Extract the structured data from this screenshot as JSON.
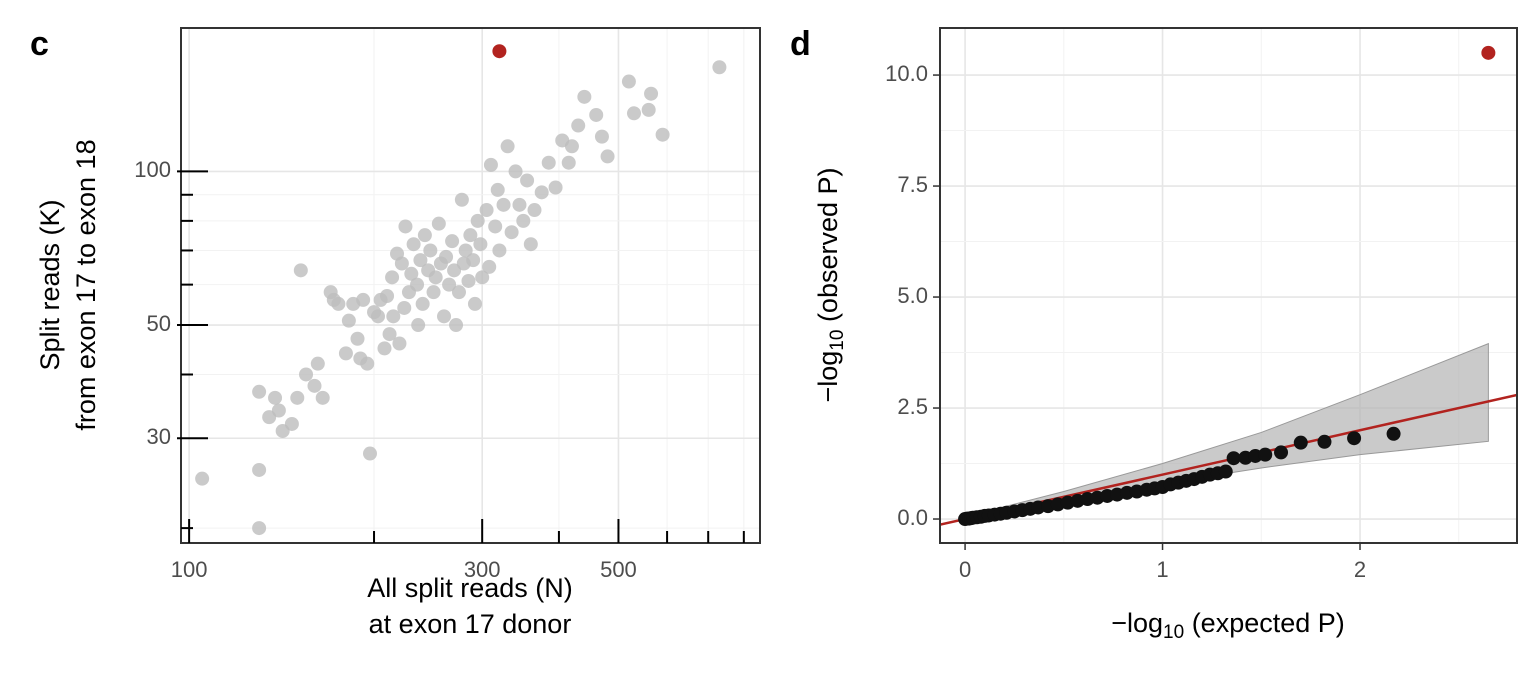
{
  "chart_data": [
    {
      "type": "scatter",
      "panel": "c",
      "xlabel": [
        "All split reads (N)",
        "at exon 17 donor"
      ],
      "ylabel": [
        "Split reads (K)",
        "from exon 17 to exon 18"
      ],
      "xscale": "log",
      "yscale": "log",
      "xlim": [
        97,
        850
      ],
      "ylim": [
        18.7,
        191
      ],
      "xticks": [
        100,
        300,
        500
      ],
      "xminor": [
        200,
        400,
        600,
        700,
        800
      ],
      "yticks": [
        30,
        50,
        100
      ],
      "yminor": [
        20,
        40,
        60,
        70,
        80,
        90
      ],
      "grid": true,
      "series": [
        {
          "color": "#bdbdbd",
          "x": [
            105,
            130,
            130,
            130,
            135,
            138,
            140,
            142,
            147,
            150,
            152,
            155,
            160,
            162,
            165,
            170,
            172,
            175,
            180,
            182,
            185,
            188,
            190,
            192,
            195,
            197,
            200,
            203,
            205,
            208,
            210,
            212,
            214,
            215,
            218,
            220,
            222,
            224,
            225,
            228,
            230,
            232,
            235,
            236,
            238,
            240,
            242,
            245,
            247,
            250,
            252,
            255,
            257,
            260,
            262,
            265,
            268,
            270,
            272,
            275,
            278,
            280,
            282,
            285,
            287,
            290,
            292,
            295,
            298,
            300,
            305,
            308,
            310,
            315,
            318,
            320,
            325,
            330,
            335,
            340,
            345,
            350,
            355,
            360,
            365,
            375,
            385,
            395,
            405,
            415,
            420,
            430,
            440,
            460,
            470,
            480,
            520,
            530,
            560,
            565,
            590,
            730
          ],
          "values": [
            25,
            26,
            20,
            37,
            33,
            36,
            34,
            31,
            32,
            36,
            64,
            40,
            38,
            42,
            36,
            58,
            56,
            55,
            44,
            51,
            55,
            47,
            43,
            56,
            42,
            28,
            53,
            52,
            56,
            45,
            57,
            48,
            62,
            52,
            69,
            46,
            66,
            54,
            78,
            58,
            63,
            72,
            60,
            50,
            67,
            55,
            75,
            64,
            70,
            58,
            62,
            79,
            66,
            52,
            68,
            60,
            73,
            64,
            50,
            58,
            88,
            66,
            70,
            61,
            75,
            67,
            55,
            80,
            72,
            62,
            84,
            65,
            103,
            78,
            92,
            70,
            86,
            112,
            76,
            100,
            86,
            80,
            96,
            72,
            84,
            91,
            104,
            93,
            115,
            104,
            112,
            123,
            140,
            129,
            117,
            107,
            150,
            130,
            132,
            142,
            118,
            160
          ]
        },
        {
          "color": "#b2231f",
          "x": [
            320
          ],
          "values": [
            172
          ]
        }
      ]
    },
    {
      "type": "scatter",
      "panel": "d",
      "xlabel": {
        "pre": "−log",
        "sub": "10",
        "post": " (expected P)"
      },
      "ylabel": {
        "pre": "−log",
        "sub": "10",
        "post": " (observed P)"
      },
      "xscale": "linear",
      "yscale": "linear",
      "xlim": [
        -0.127,
        2.795
      ],
      "ylim": [
        -0.54,
        11.06
      ],
      "xticks": [
        0,
        1,
        2
      ],
      "xminor": [
        0.5,
        1.5,
        2.5
      ],
      "yticks": [
        {
          "value": 0,
          "label": "0.0"
        },
        {
          "value": 2.5,
          "label": "2.5"
        },
        {
          "value": 5,
          "label": "5.0"
        },
        {
          "value": 7.5,
          "label": "7.5"
        },
        {
          "value": 10,
          "label": "10.0"
        }
      ],
      "yminor": [
        1.25,
        3.75,
        6.25,
        8.75
      ],
      "grid": true,
      "band": {
        "color": "#b3b3b3",
        "x": [
          0,
          0.5,
          1,
          1.5,
          2,
          2.65
        ],
        "upper": [
          0.05,
          0.62,
          1.25,
          1.95,
          2.8,
          3.95
        ],
        "lower": [
          0,
          0.4,
          0.8,
          1.15,
          1.45,
          1.75
        ]
      },
      "refline": {
        "color": "#b2231f",
        "intercept": 0,
        "slope": 1
      },
      "series": [
        {
          "color": "#111111",
          "x": [
            0,
            0.01,
            0.02,
            0.03,
            0.04,
            0.06,
            0.08,
            0.1,
            0.12,
            0.15,
            0.18,
            0.21,
            0.25,
            0.29,
            0.33,
            0.37,
            0.42,
            0.47,
            0.52,
            0.57,
            0.62,
            0.67,
            0.72,
            0.77,
            0.82,
            0.87,
            0.92,
            0.96,
            1.0,
            1.04,
            1.08,
            1.12,
            1.16,
            1.2,
            1.24,
            1.28,
            1.32,
            1.36,
            1.42,
            1.47,
            1.52,
            1.6,
            1.7,
            1.82,
            1.97,
            2.17
          ],
          "values": [
            0,
            0.01,
            0.01,
            0.02,
            0.03,
            0.04,
            0.05,
            0.07,
            0.08,
            0.1,
            0.12,
            0.14,
            0.17,
            0.2,
            0.23,
            0.26,
            0.29,
            0.33,
            0.37,
            0.41,
            0.45,
            0.48,
            0.52,
            0.55,
            0.59,
            0.62,
            0.66,
            0.69,
            0.72,
            0.78,
            0.82,
            0.86,
            0.9,
            0.95,
            1.0,
            1.03,
            1.07,
            1.37,
            1.38,
            1.42,
            1.45,
            1.5,
            1.72,
            1.74,
            1.82,
            1.92
          ]
        },
        {
          "color": "#b2231f",
          "x": [
            2.65
          ],
          "values": [
            10.5
          ]
        }
      ]
    }
  ]
}
